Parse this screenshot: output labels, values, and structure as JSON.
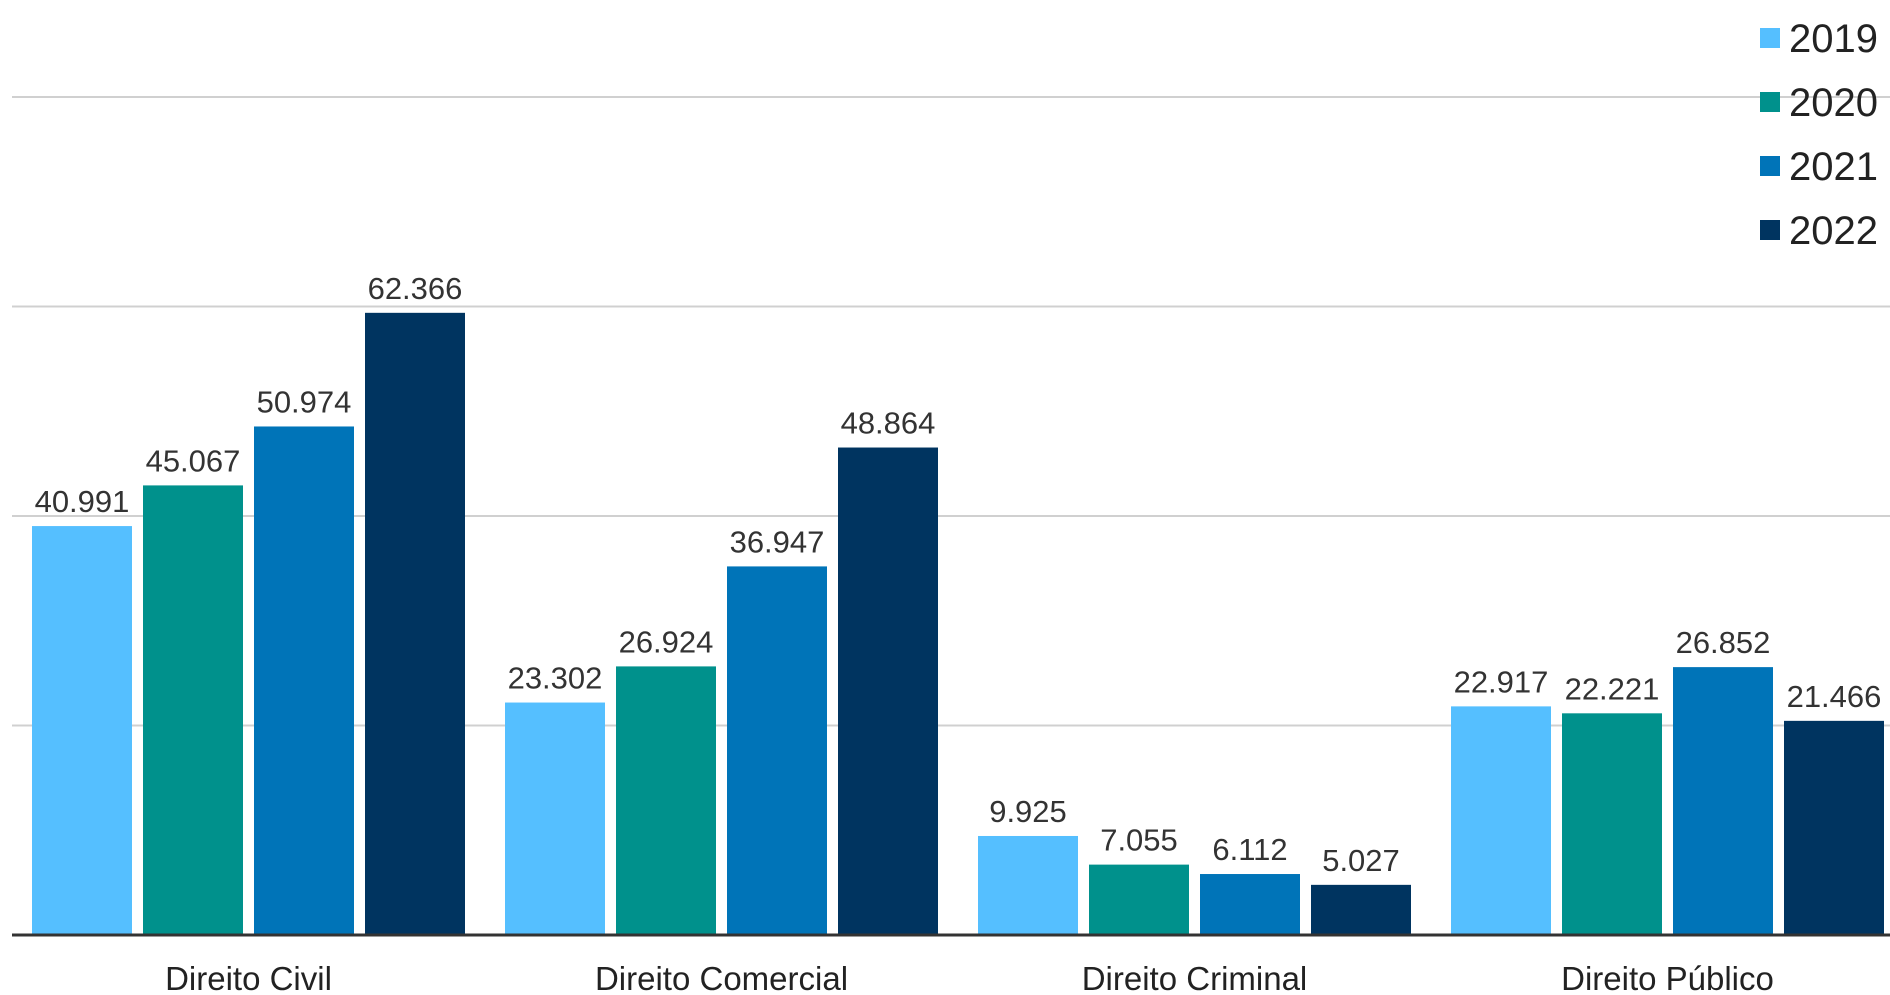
{
  "chart_data": {
    "type": "bar",
    "title": "",
    "xlabel": "",
    "ylabel": "",
    "categories": [
      "Direito Civil",
      "Direito Comercial",
      "Direito Criminal",
      "Direito Público"
    ],
    "series": [
      {
        "name": "2019",
        "color": "#55bfff",
        "values": [
          40991,
          23302,
          9925,
          22917
        ],
        "labels": [
          "40.991",
          "23.302",
          "9.925",
          "22.917"
        ]
      },
      {
        "name": "2020",
        "color": "#00918c",
        "values": [
          45067,
          26924,
          7055,
          22221
        ],
        "labels": [
          "45.067",
          "26.924",
          "7.055",
          "22.221"
        ]
      },
      {
        "name": "2021",
        "color": "#0074b8",
        "values": [
          50974,
          36947,
          6112,
          26852
        ],
        "labels": [
          "50.974",
          "36.947",
          "6.112",
          "26.852"
        ]
      },
      {
        "name": "2022",
        "color": "#003460",
        "values": [
          62366,
          48864,
          5027,
          21466
        ],
        "labels": [
          "62.366",
          "48.864",
          "5.027",
          "21.466"
        ]
      }
    ],
    "ylim": [
      0,
      84000
    ],
    "gridlines": [
      0,
      21000,
      42000,
      63000,
      84000
    ],
    "grid": true,
    "legend_position": "top-right"
  }
}
